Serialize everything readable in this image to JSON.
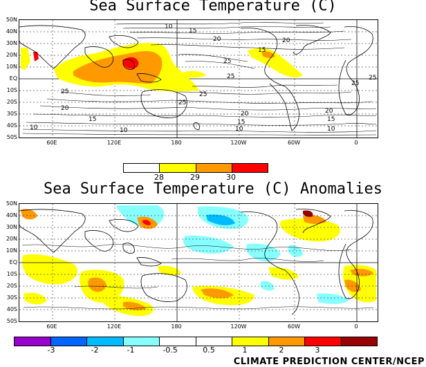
{
  "maps": {
    "sst": {
      "title": "Sea Surface Temperature (C)",
      "lat_labels": [
        "50N",
        "40N",
        "30N",
        "20N",
        "10N",
        "EQ",
        "10S",
        "20S",
        "30S",
        "40S",
        "50S"
      ],
      "lon_labels": [
        "60E",
        "120E",
        "180",
        "120W",
        "60W",
        "0"
      ],
      "contour_labels": [
        "10",
        "15",
        "20",
        "25",
        "25",
        "25",
        "25",
        "20",
        "15",
        "10",
        "10",
        "20",
        "15",
        "10",
        "15",
        "20",
        "25",
        "25",
        "10",
        "15",
        "20",
        "25"
      ],
      "colorbar": {
        "colors": [
          "#ffffff",
          "#ffff00",
          "#ff9900",
          "#ff0000"
        ],
        "labels": [
          "28",
          "29",
          "30"
        ]
      }
    },
    "anomaly": {
      "title": "Sea Surface Temperature (C) Anomalies",
      "lat_labels": [
        "50N",
        "40N",
        "30N",
        "20N",
        "10N",
        "EQ",
        "10S",
        "20S",
        "30S",
        "40S",
        "50S"
      ],
      "lon_labels": [
        "60E",
        "120E",
        "180",
        "120W",
        "60W",
        "0"
      ],
      "colorbar": {
        "colors": [
          "#9900cc",
          "#0066ff",
          "#00bbff",
          "#88ffff",
          "#ffffff",
          "#ffffff",
          "#ffff00",
          "#ff9900",
          "#ff0000",
          "#990000"
        ],
        "labels": [
          "-3",
          "-2",
          "-1",
          "-0.5",
          "0.5",
          "1",
          "2",
          "3"
        ]
      }
    }
  },
  "credit": "CLIMATE PREDICTION CENTER/NCEP"
}
